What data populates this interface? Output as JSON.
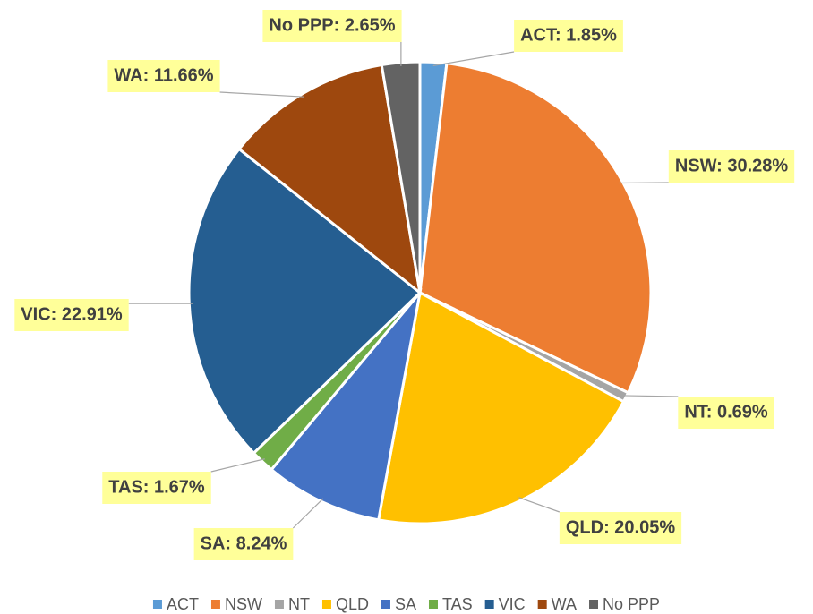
{
  "chart_data": {
    "type": "pie",
    "categories": [
      "ACT",
      "NSW",
      "NT",
      "QLD",
      "SA",
      "TAS",
      "VIC",
      "WA",
      "No PPP"
    ],
    "values": [
      1.85,
      30.28,
      0.69,
      20.05,
      8.24,
      1.67,
      22.91,
      11.66,
      2.65
    ],
    "value_labels": [
      "ACT: 1.85%",
      "NSW: 30.28%",
      "NT: 0.69%",
      "QLD: 20.05%",
      "SA: 8.24%",
      "TAS: 1.67%",
      "VIC: 22.91%",
      "WA: 11.66%",
      "No PPP: 2.65%"
    ],
    "colors": [
      "#5b9bd5",
      "#ed7d31",
      "#a5a5a5",
      "#ffc000",
      "#4472c4",
      "#70ad47",
      "#255e91",
      "#9e480e",
      "#636363"
    ],
    "legend": "bottom"
  }
}
